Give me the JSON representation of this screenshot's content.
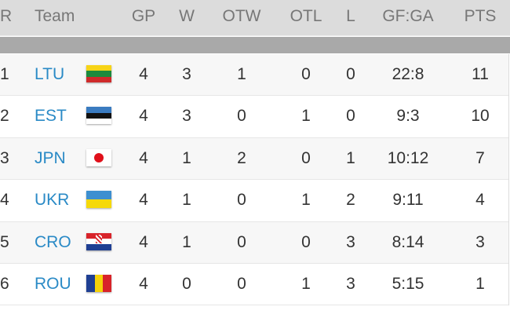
{
  "headers": {
    "rank": "R",
    "team": "Team",
    "gp": "GP",
    "w": "W",
    "otw": "OTW",
    "otl": "OTL",
    "l": "L",
    "gfga": "GF:GA",
    "pts": "PTS"
  },
  "rows": [
    {
      "rank": "1",
      "team": "LTU",
      "flag": "lithuania-flag",
      "gp": "4",
      "w": "3",
      "otw": "1",
      "otl": "0",
      "l": "0",
      "gfga": "22:8",
      "pts": "11"
    },
    {
      "rank": "2",
      "team": "EST",
      "flag": "estonia-flag",
      "gp": "4",
      "w": "3",
      "otw": "0",
      "otl": "1",
      "l": "0",
      "gfga": "9:3",
      "pts": "10"
    },
    {
      "rank": "3",
      "team": "JPN",
      "flag": "japan-flag",
      "gp": "4",
      "w": "1",
      "otw": "2",
      "otl": "0",
      "l": "1",
      "gfga": "10:12",
      "pts": "7"
    },
    {
      "rank": "4",
      "team": "UKR",
      "flag": "ukraine-flag",
      "gp": "4",
      "w": "1",
      "otw": "0",
      "otl": "1",
      "l": "2",
      "gfga": "9:11",
      "pts": "4"
    },
    {
      "rank": "5",
      "team": "CRO",
      "flag": "croatia-flag",
      "gp": "4",
      "w": "1",
      "otw": "0",
      "otl": "0",
      "l": "3",
      "gfga": "8:14",
      "pts": "3"
    },
    {
      "rank": "6",
      "team": "ROU",
      "flag": "romania-flag",
      "gp": "4",
      "w": "0",
      "otw": "0",
      "otl": "1",
      "l": "3",
      "gfga": "5:15",
      "pts": "1"
    }
  ],
  "colors": {
    "link": "#2a8ac6",
    "header_bg": "#dcdcdc",
    "band": "#a9a9a9"
  }
}
